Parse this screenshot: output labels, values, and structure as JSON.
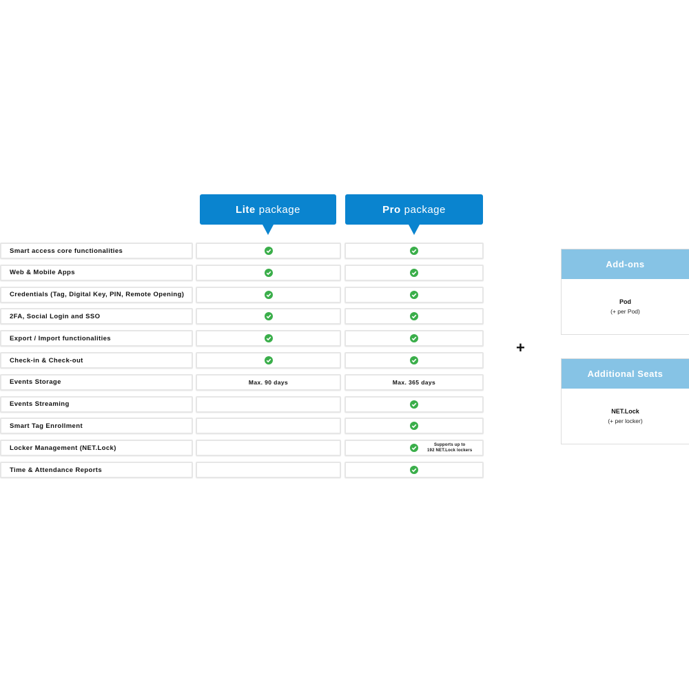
{
  "packages": [
    {
      "name": "Lite",
      "suffix": "package"
    },
    {
      "name": "Pro",
      "suffix": "package"
    }
  ],
  "rows": [
    {
      "feature": "Smart access core functionalities",
      "lite": true,
      "pro": true
    },
    {
      "feature": "Web & Mobile Apps",
      "lite": true,
      "pro": true
    },
    {
      "feature": "Credentials (Tag, Digital Key, PIN, Remote Opening)",
      "lite": true,
      "pro": true
    },
    {
      "feature": "2FA, Social Login and SSO",
      "lite": true,
      "pro": true
    },
    {
      "feature": "Export / Import functionalities",
      "lite": true,
      "pro": true
    },
    {
      "feature": "Check-in & Check-out",
      "lite": true,
      "pro": true
    },
    {
      "feature": "Events Storage",
      "lite": "Max. 90 days",
      "pro": "Max. 365 days"
    },
    {
      "feature": "Events Streaming",
      "lite": null,
      "pro": true
    },
    {
      "feature": "Smart Tag Enrollment",
      "lite": null,
      "pro": true
    },
    {
      "feature": "Locker Management (NET.Lock)",
      "lite": null,
      "pro": {
        "included": true,
        "note": [
          "Supports up to",
          "192 NET.Lock lockers"
        ]
      }
    },
    {
      "feature": "Time & Attendance Reports",
      "lite": null,
      "pro": true
    }
  ],
  "plus": "+",
  "extras": [
    {
      "title": "Add-ons",
      "item": "Pod",
      "detail": "(+ per Pod)"
    },
    {
      "title": "Additional Seats",
      "item": "NET.Lock",
      "detail": "(+ per locker)"
    }
  ]
}
